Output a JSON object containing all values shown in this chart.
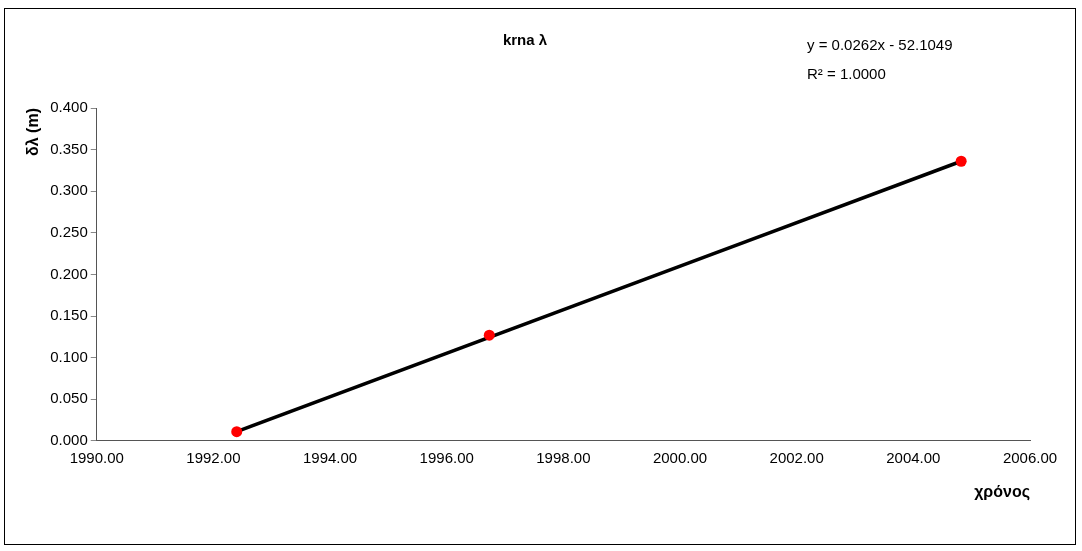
{
  "chart_data": {
    "type": "scatter",
    "title": "krna λ",
    "xlabel": "χρόνος",
    "ylabel": "δλ (m)",
    "annotations": [
      "y = 0.0262x - 52.1049",
      "R² = 1.0000"
    ],
    "series": [
      {
        "color": "#ff0000",
        "x": [
          1992.4,
          1996.73,
          2004.82
        ],
        "values": [
          0.011,
          0.127,
          0.336
        ],
        "marker": "circle"
      },
      {
        "type": "line",
        "color": "#000000",
        "x": [
          1992.4,
          2004.82
        ],
        "values": [
          0.011,
          0.336
        ],
        "marker": "none"
      }
    ],
    "xlim": [
      1990,
      2006
    ],
    "xticks": [
      {
        "value": 1990,
        "label": "1990.00"
      },
      {
        "value": 1992,
        "label": "1992.00"
      },
      {
        "value": 1994,
        "label": "1994.00"
      },
      {
        "value": 1996,
        "label": "1996.00"
      },
      {
        "value": 1998,
        "label": "1998.00"
      },
      {
        "value": 2000,
        "label": "2000.00"
      },
      {
        "value": 2002,
        "label": "2002.00"
      },
      {
        "value": 2004,
        "label": "2004.00"
      },
      {
        "value": 2006,
        "label": "2006.00"
      }
    ],
    "ylim": [
      0,
      0.4
    ],
    "yticks": [
      {
        "value": 0,
        "label": "0.000"
      },
      {
        "value": 0.05,
        "label": "0.050"
      },
      {
        "value": 0.1,
        "label": "0.100"
      },
      {
        "value": 0.15,
        "label": "0.150"
      },
      {
        "value": 0.2,
        "label": "0.200"
      },
      {
        "value": 0.25,
        "label": "0.250"
      },
      {
        "value": 0.3,
        "label": "0.300"
      },
      {
        "value": 0.35,
        "label": "0.350"
      },
      {
        "value": 0.4,
        "label": "0.400"
      }
    ],
    "grid": false,
    "legend": false
  }
}
